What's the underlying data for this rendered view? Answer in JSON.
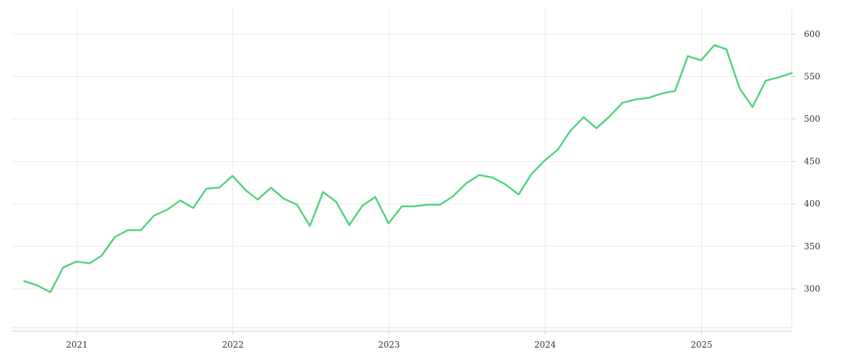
{
  "chart_data": {
    "type": "line",
    "title": "",
    "xlabel": "",
    "ylabel": "",
    "x_ticks": [
      "2021",
      "2022",
      "2023",
      "2024",
      "2025"
    ],
    "y_ticks": [
      300,
      350,
      400,
      450,
      500,
      550,
      600
    ],
    "xlim": [
      "2020-08-01",
      "2025-07-31"
    ],
    "ylim": [
      250,
      630
    ],
    "grid": true,
    "y_axis_side": "right",
    "line_color": "#4fd37d",
    "series": [
      {
        "x": [
          "2020-08-31",
          "2020-09-30",
          "2020-10-31",
          "2020-11-30",
          "2020-12-31",
          "2021-01-31",
          "2021-02-28",
          "2021-03-31",
          "2021-04-30",
          "2021-05-31",
          "2021-06-30",
          "2021-07-31",
          "2021-08-31",
          "2021-09-30",
          "2021-10-31",
          "2021-11-30",
          "2021-12-31",
          "2022-01-31",
          "2022-02-28",
          "2022-03-31",
          "2022-04-30",
          "2022-05-31",
          "2022-06-30",
          "2022-07-31",
          "2022-08-31",
          "2022-09-30",
          "2022-10-31",
          "2022-11-30",
          "2022-12-31",
          "2023-01-31",
          "2023-02-28",
          "2023-03-31",
          "2023-04-30",
          "2023-05-31",
          "2023-06-30",
          "2023-07-31",
          "2023-08-31",
          "2023-09-30",
          "2023-10-31",
          "2023-11-30",
          "2023-12-31",
          "2024-01-31",
          "2024-02-29",
          "2024-03-31",
          "2024-04-30",
          "2024-05-31",
          "2024-06-30",
          "2024-07-31",
          "2024-08-31",
          "2024-09-30",
          "2024-10-31",
          "2024-11-30",
          "2024-12-31",
          "2025-01-31",
          "2025-02-28",
          "2025-03-31",
          "2025-04-30",
          "2025-05-31",
          "2025-06-30",
          "2025-07-31"
        ],
        "values": [
          309,
          304,
          296,
          325,
          332,
          330,
          339,
          361,
          369,
          369,
          386,
          393,
          404,
          395,
          418,
          419,
          433,
          416,
          405,
          419,
          406,
          399,
          374,
          414,
          402,
          375,
          398,
          408,
          377,
          397,
          397,
          399,
          399,
          409,
          424,
          434,
          431,
          423,
          411,
          435,
          451,
          464,
          486,
          502,
          489,
          503,
          519,
          523,
          525,
          530,
          533,
          574,
          569,
          587,
          582,
          536,
          514,
          545,
          549,
          554
        ]
      }
    ]
  }
}
